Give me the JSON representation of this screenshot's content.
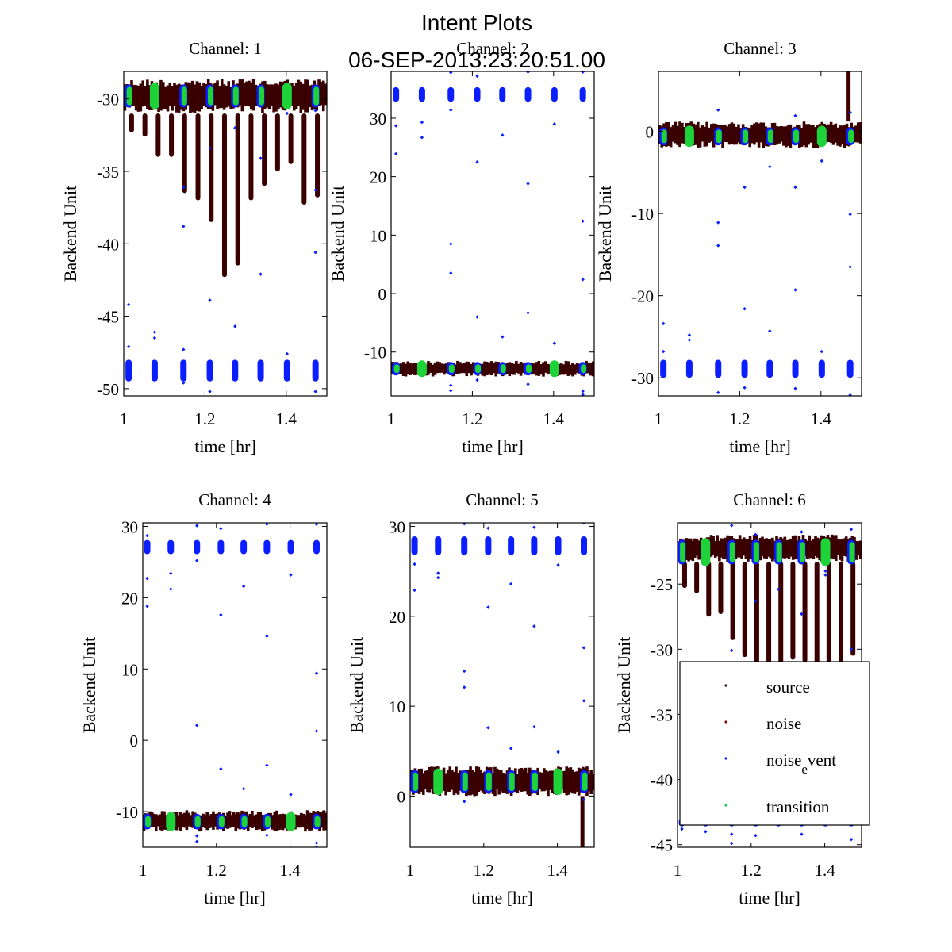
{
  "chart_data": {
    "type": "scatter",
    "title": "Intent Plots",
    "subtitle": "06-SEP-2013:23:20:51.00",
    "series_styles": {
      "source": "#3a0000",
      "noise": "#8b0000",
      "noise_event": "#0a1eff",
      "transition": "#1ed23a"
    },
    "legend": {
      "entries": [
        {
          "key": "source",
          "label": "source"
        },
        {
          "key": "noise",
          "label": "noise"
        },
        {
          "key": "noise_event",
          "label": "noise",
          "label_sub": "e",
          "label_rest": "vent"
        },
        {
          "key": "transition",
          "label": "transition"
        }
      ],
      "placement": "inside channel-6 lower-right"
    },
    "cluster_times": [
      1.012,
      1.076,
      1.147,
      1.212,
      1.274,
      1.337,
      1.402,
      1.472
    ],
    "big_transition_clusters": [
      1,
      6
    ],
    "panels": [
      {
        "title": "Channel: 1",
        "xlabel": "time [hr]",
        "ylabel": "Backend Unit",
        "xlim": [
          1,
          1.5
        ],
        "ylim": [
          -50.5,
          -28.1
        ],
        "xticks": [
          1,
          1.2,
          1.4
        ],
        "xtick_labels": [
          "1",
          "1.2",
          "1.4"
        ],
        "yticks": [
          -30,
          -35,
          -40,
          -45,
          -50
        ],
        "ytick_labels": [
          "-30",
          "-35",
          "-40",
          "-45",
          "-50"
        ],
        "source_band": [
          -31,
          -28.6
        ],
        "source_dips": [
          -32.3,
          -32.6,
          -34,
          -34,
          -36.5,
          -37,
          -38.5,
          -42.3,
          -41.5,
          -37,
          -36,
          -35,
          -34.5,
          -37.3,
          -36.8
        ],
        "noise_event_main": [
          -30.6,
          -29.0
        ],
        "noise_event_group": [
          -49.5,
          -48.0
        ],
        "noise_event_outliers": [
          [
            1.012,
            -44.2
          ],
          [
            1.012,
            -47.1
          ],
          [
            1.076,
            -46.1
          ],
          [
            1.076,
            -46.5
          ],
          [
            1.147,
            -47.3
          ],
          [
            1.147,
            -38.8
          ],
          [
            1.147,
            -36.1
          ],
          [
            1.147,
            -49.6
          ],
          [
            1.147,
            -50.6
          ],
          [
            1.212,
            -43.9
          ],
          [
            1.212,
            -50.2
          ],
          [
            1.212,
            -33.4
          ],
          [
            1.274,
            -45.7
          ],
          [
            1.274,
            -32.0
          ],
          [
            1.337,
            -42.1
          ],
          [
            1.337,
            -34.1
          ],
          [
            1.402,
            -47.6
          ],
          [
            1.402,
            -31.0
          ],
          [
            1.472,
            -40.6
          ],
          [
            1.472,
            -50.2
          ],
          [
            1.472,
            -36.3
          ],
          [
            1.472,
            -30.8
          ]
        ]
      },
      {
        "title": "Channel: 2",
        "xlabel": "time [hr]",
        "ylabel": "Backend Unit",
        "xlim": [
          1,
          1.5
        ],
        "ylim": [
          -17.5,
          38
        ],
        "xticks": [
          1,
          1.2,
          1.4
        ],
        "xtick_labels": [
          "1",
          "1.2",
          "1.4"
        ],
        "yticks": [
          30,
          20,
          10,
          0,
          -10
        ],
        "ytick_labels": [
          "30",
          "20",
          "10",
          "0",
          "-10"
        ],
        "source_band": [
          -14.2,
          -11.5
        ],
        "source_dips": [],
        "noise_event_main": [
          -14.0,
          -11.7
        ],
        "noise_event_group": [
          32.8,
          35.3
        ],
        "noise_event_outliers": [
          [
            1.012,
            28.7
          ],
          [
            1.012,
            23.9
          ],
          [
            1.076,
            29.3
          ],
          [
            1.076,
            26.7
          ],
          [
            1.147,
            8.5
          ],
          [
            1.147,
            3.5
          ],
          [
            1.147,
            31.4
          ],
          [
            1.147,
            37.8
          ],
          [
            1.147,
            -15.7
          ],
          [
            1.147,
            -16.6
          ],
          [
            1.212,
            22.5
          ],
          [
            1.212,
            37.2
          ],
          [
            1.212,
            -4
          ],
          [
            1.212,
            -14.8
          ],
          [
            1.274,
            27.1
          ],
          [
            1.274,
            -7.4
          ],
          [
            1.337,
            18.8
          ],
          [
            1.337,
            -3.3
          ],
          [
            1.337,
            -15.5
          ],
          [
            1.337,
            37.9
          ],
          [
            1.402,
            29.0
          ],
          [
            1.402,
            -8.5
          ],
          [
            1.472,
            12.4
          ],
          [
            1.472,
            2.4
          ],
          [
            1.472,
            -16.7
          ],
          [
            1.472,
            -17.3
          ],
          [
            1.472,
            37.9
          ]
        ]
      },
      {
        "title": "Channel: 3",
        "xlabel": "time [hr]",
        "ylabel": "Backend Unit",
        "xlim": [
          1,
          1.5
        ],
        "ylim": [
          -32.2,
          7.3
        ],
        "xticks": [
          1,
          1.2,
          1.4
        ],
        "xtick_labels": [
          "1",
          "1.2",
          "1.4"
        ],
        "yticks": [
          0,
          -10,
          -20,
          -30
        ],
        "ytick_labels": [
          "0",
          "-10",
          "-20",
          "-30"
        ],
        "source_band": [
          -2.0,
          1.2
        ],
        "source_spike": [
          1.468,
          7.3
        ],
        "source_dips": [],
        "noise_event_main": [
          -1.7,
          0.5
        ],
        "noise_event_group": [
          -30.0,
          -27.8
        ],
        "noise_event_outliers": [
          [
            1.012,
            -23.4
          ],
          [
            1.012,
            -26.8
          ],
          [
            1.076,
            -24.8
          ],
          [
            1.076,
            -25.4
          ],
          [
            1.147,
            -11.1
          ],
          [
            1.147,
            -13.9
          ],
          [
            1.147,
            2.6
          ],
          [
            1.147,
            -31.8
          ],
          [
            1.212,
            -6.8
          ],
          [
            1.212,
            -21.6
          ],
          [
            1.212,
            -31.2
          ],
          [
            1.274,
            -4.3
          ],
          [
            1.274,
            -24.3
          ],
          [
            1.337,
            -6.8
          ],
          [
            1.337,
            -19.3
          ],
          [
            1.337,
            -31.3
          ],
          [
            1.337,
            1.9
          ],
          [
            1.402,
            -3.6
          ],
          [
            1.402,
            -26.8
          ],
          [
            1.472,
            -10.1
          ],
          [
            1.472,
            -16.5
          ],
          [
            1.472,
            -32.1
          ],
          [
            1.472,
            2.3
          ]
        ]
      },
      {
        "title": "Channel: 4",
        "xlabel": "time [hr]",
        "ylabel": "Backend Unit",
        "xlim": [
          1,
          1.5
        ],
        "ylim": [
          -15,
          30.5
        ],
        "xticks": [
          1,
          1.2,
          1.4
        ],
        "xtick_labels": [
          "1",
          "1.2",
          "1.4"
        ],
        "yticks": [
          30,
          20,
          10,
          0,
          -10
        ],
        "ytick_labels": [
          "30",
          "20",
          "10",
          "0",
          "-10"
        ],
        "source_band": [
          -12.8,
          -9.8
        ],
        "source_dips": [],
        "noise_event_main": [
          -12.5,
          -10.3
        ],
        "noise_event_group": [
          26.1,
          28.1
        ],
        "noise_event_outliers": [
          [
            1.012,
            22.7
          ],
          [
            1.012,
            18.8
          ],
          [
            1.012,
            28.7
          ],
          [
            1.076,
            23.4
          ],
          [
            1.076,
            21.2
          ],
          [
            1.147,
            25.2
          ],
          [
            1.147,
            30.1
          ],
          [
            1.147,
            2.1
          ],
          [
            1.147,
            -13.4
          ],
          [
            1.147,
            -14.2
          ],
          [
            1.212,
            17.6
          ],
          [
            1.212,
            29.7
          ],
          [
            1.212,
            -4.0
          ],
          [
            1.274,
            21.6
          ],
          [
            1.274,
            -6.8
          ],
          [
            1.337,
            14.6
          ],
          [
            1.337,
            30.3
          ],
          [
            1.337,
            -3.5
          ],
          [
            1.337,
            -13.3
          ],
          [
            1.402,
            23.2
          ],
          [
            1.402,
            -7.6
          ],
          [
            1.472,
            9.4
          ],
          [
            1.472,
            1.3
          ],
          [
            1.472,
            -14.4
          ],
          [
            1.472,
            -15.0
          ],
          [
            1.472,
            30.3
          ]
        ]
      },
      {
        "title": "Channel: 5",
        "xlabel": "time [hr]",
        "ylabel": "Backend Unit",
        "xlim": [
          1,
          1.5
        ],
        "ylim": [
          -5.7,
          30.4
        ],
        "xticks": [
          1,
          1.2,
          1.4
        ],
        "xtick_labels": [
          "1",
          "1.2",
          "1.4"
        ],
        "yticks": [
          30,
          20,
          10,
          0
        ],
        "ytick_labels": [
          "30",
          "20",
          "10",
          "0"
        ],
        "source_band": [
          0.0,
          3.3
        ],
        "source_spike_down": [
          1.468,
          -5.7
        ],
        "source_dips": [],
        "noise_event_main": [
          0.3,
          2.9
        ],
        "noise_event_group": [
          26.8,
          28.9
        ],
        "noise_event_outliers": [
          [
            1.012,
            22.9
          ],
          [
            1.012,
            25.8
          ],
          [
            1.076,
            24.8
          ],
          [
            1.076,
            24.3
          ],
          [
            1.147,
            13.9
          ],
          [
            1.147,
            12.1
          ],
          [
            1.147,
            30.3
          ],
          [
            1.147,
            -0.6
          ],
          [
            1.212,
            21.0
          ],
          [
            1.212,
            7.6
          ],
          [
            1.212,
            29.8
          ],
          [
            1.274,
            23.6
          ],
          [
            1.274,
            5.3
          ],
          [
            1.337,
            18.9
          ],
          [
            1.337,
            7.7
          ],
          [
            1.337,
            29.9
          ],
          [
            1.402,
            25.7
          ],
          [
            1.402,
            4.9
          ],
          [
            1.472,
            16.5
          ],
          [
            1.472,
            10.6
          ],
          [
            1.472,
            -0.4
          ],
          [
            1.472,
            30.4
          ]
        ]
      },
      {
        "title": "Channel: 6",
        "xlabel": "time [hr]",
        "ylabel": "Backend Unit",
        "xlim": [
          1,
          1.5
        ],
        "ylim": [
          -45.2,
          -20.3
        ],
        "xticks": [
          1,
          1.2,
          1.4
        ],
        "xtick_labels": [
          "1",
          "1.2",
          "1.4"
        ],
        "yticks": [
          -25,
          -30,
          -35,
          -40,
          -45
        ],
        "ytick_labels": [
          "-25",
          "-30",
          "-35",
          "-40",
          "-45"
        ],
        "source_band": [
          -23.3,
          -21.2
        ],
        "source_dips": [
          -25.3,
          -25.7,
          -27.5,
          -27.3,
          -29.3,
          -30.6,
          -31.5,
          -32.5,
          -31.5,
          -30.8,
          -31,
          -31.2,
          -31.7,
          -31.2,
          -30.5
        ],
        "noise_event_main": [
          -23.5,
          -21.6
        ],
        "noise_event_group": [
          -43.6,
          -43.0
        ],
        "noise_event_outliers": [
          [
            1.012,
            -43.8
          ],
          [
            1.076,
            -44.0
          ],
          [
            1.147,
            -44.2
          ],
          [
            1.147,
            -44.9
          ],
          [
            1.147,
            -30.1
          ],
          [
            1.147,
            -20.5
          ],
          [
            1.212,
            -26.3
          ],
          [
            1.212,
            -21.2
          ],
          [
            1.212,
            -44.3
          ],
          [
            1.274,
            -25.4
          ],
          [
            1.337,
            -27.3
          ],
          [
            1.337,
            -21.0
          ],
          [
            1.337,
            -44.2
          ],
          [
            1.402,
            -24.0
          ],
          [
            1.402,
            -24.3
          ],
          [
            1.472,
            -20.8
          ],
          [
            1.472,
            -30.0
          ],
          [
            1.472,
            -44.6
          ]
        ]
      }
    ]
  }
}
